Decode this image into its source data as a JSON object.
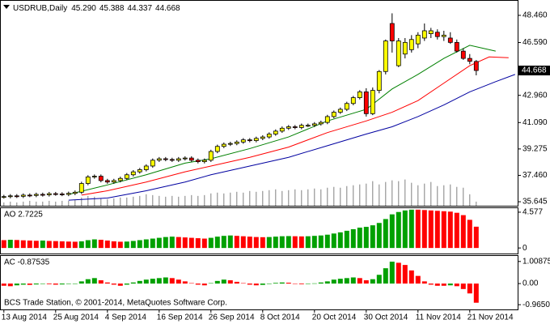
{
  "watermark": "BCS Trade Station, © 2001-2014, MetaQuotes Software Corp.",
  "chart_data": [
    {
      "type": "candlestick",
      "title": "USDRUB,Daily",
      "ohlc_labels": [
        "45.290",
        "45.388",
        "44.337",
        "44.668"
      ],
      "current_price_label": "44.668",
      "xlim": [
        -0.6,
        79.4
      ],
      "ylim": [
        35.37,
        49.46
      ],
      "yticks": [
        {
          "value": 48.46,
          "label": "48.460"
        },
        {
          "value": 46.59,
          "label": "46.590"
        },
        {
          "value": 42.96,
          "label": "42.960"
        },
        {
          "value": 41.09,
          "label": "41.090"
        },
        39.275,
        {
          "value": 37.46,
          "label": "37.460"
        },
        35.645
      ],
      "up_color": "#ffff00",
      "down_color": "#ff0000",
      "open": [
        35.98,
        36.0,
        36.05,
        36.02,
        36.1,
        36.08,
        36.15,
        36.12,
        36.2,
        36.18,
        36.15,
        36.22,
        36.3,
        36.9,
        37.35,
        37.4,
        37.1,
        37.0,
        37.1,
        37.25,
        37.5,
        37.7,
        37.85,
        38.1,
        38.5,
        38.6,
        38.55,
        38.5,
        38.6,
        38.65,
        38.5,
        38.4,
        38.5,
        39.1,
        39.45,
        39.6,
        39.65,
        39.75,
        39.9,
        39.85,
        40.0,
        40.1,
        40.3,
        40.5,
        40.7,
        40.8,
        40.75,
        40.9,
        40.9,
        41.0,
        41.1,
        41.5,
        41.8,
        42.0,
        42.4,
        42.8,
        43.2,
        41.7,
        43.3,
        44.6,
        47.9,
        45.0,
        45.8,
        46.1,
        46.5,
        46.9,
        47.2,
        47.3,
        47.0,
        46.9,
        46.6,
        46.0,
        45.5,
        45.29
      ],
      "high": [
        36.12,
        36.17,
        36.17,
        36.22,
        36.22,
        36.27,
        36.27,
        36.32,
        36.32,
        36.3,
        36.34,
        36.42,
        37.02,
        37.47,
        37.52,
        37.52,
        37.22,
        37.22,
        37.37,
        37.62,
        37.82,
        37.97,
        38.22,
        38.62,
        38.72,
        38.72,
        38.67,
        38.72,
        38.77,
        38.77,
        38.62,
        38.62,
        39.22,
        39.57,
        39.72,
        39.77,
        39.87,
        40.02,
        40.02,
        40.12,
        40.22,
        40.42,
        40.62,
        40.82,
        40.92,
        40.92,
        41.02,
        41.02,
        41.12,
        41.22,
        41.62,
        41.92,
        42.12,
        42.52,
        42.92,
        43.32,
        43.45,
        43.5,
        44.7,
        46.8,
        48.6,
        46.9,
        46.9,
        47.1,
        47.3,
        47.9,
        47.6,
        47.5,
        47.4,
        47.3,
        46.8,
        46.2,
        45.8,
        45.388
      ],
      "low": [
        35.86,
        35.88,
        35.9,
        35.9,
        35.96,
        35.96,
        36.0,
        36.0,
        36.06,
        36.03,
        36.03,
        36.1,
        36.18,
        36.78,
        37.23,
        36.98,
        36.88,
        36.88,
        36.98,
        37.13,
        37.38,
        37.58,
        37.73,
        37.98,
        38.38,
        38.43,
        38.38,
        38.38,
        38.48,
        38.38,
        38.28,
        38.28,
        38.38,
        38.98,
        39.33,
        39.48,
        39.53,
        39.63,
        39.73,
        39.73,
        39.88,
        39.98,
        40.18,
        40.38,
        40.58,
        40.63,
        40.63,
        40.78,
        40.78,
        40.88,
        40.98,
        41.38,
        41.68,
        41.88,
        42.28,
        42.68,
        41.5,
        41.6,
        43.1,
        44.4,
        45.9,
        44.9,
        45.5,
        45.9,
        46.2,
        46.7,
        46.9,
        46.8,
        46.7,
        46.5,
        45.9,
        45.4,
        45.1,
        44.337
      ],
      "close": [
        36.0,
        36.05,
        36.02,
        36.1,
        36.08,
        36.15,
        36.12,
        36.2,
        36.18,
        36.15,
        36.22,
        36.3,
        36.9,
        37.35,
        37.4,
        37.1,
        37.0,
        37.1,
        37.25,
        37.5,
        37.7,
        37.85,
        38.1,
        38.5,
        38.6,
        38.55,
        38.5,
        38.6,
        38.65,
        38.5,
        38.4,
        38.5,
        39.1,
        39.45,
        39.6,
        39.65,
        39.75,
        39.9,
        39.85,
        40.0,
        40.1,
        40.3,
        40.5,
        40.7,
        40.8,
        40.75,
        40.9,
        40.9,
        41.0,
        41.1,
        41.5,
        41.8,
        42.0,
        42.4,
        42.8,
        43.2,
        41.7,
        43.3,
        44.6,
        46.7,
        46.7,
        46.7,
        46.6,
        46.8,
        47.1,
        47.4,
        47.4,
        47.0,
        47.1,
        46.6,
        46.0,
        45.5,
        45.3,
        44.668
      ],
      "series": [
        {
          "color": "#008000",
          "x": [
            10,
            16,
            22,
            28,
            32,
            38,
            44,
            50,
            56,
            60,
            64,
            68,
            72,
            76
          ],
          "values": [
            36.15,
            36.8,
            37.5,
            38.3,
            38.6,
            39.3,
            40.1,
            41.2,
            42.0,
            43.4,
            44.4,
            45.5,
            46.4,
            46.0
          ]
        },
        {
          "color": "#ff0000",
          "x": [
            12,
            16,
            22,
            28,
            32,
            38,
            44,
            50,
            56,
            60,
            64,
            68,
            72,
            75,
            78
          ],
          "values": [
            36.1,
            36.4,
            37.0,
            37.7,
            38.1,
            38.7,
            39.4,
            40.4,
            41.2,
            41.8,
            42.6,
            43.8,
            45.0,
            45.6,
            45.55
          ]
        },
        {
          "color": "#0000a0",
          "x": [
            10,
            16,
            22,
            28,
            32,
            38,
            44,
            50,
            56,
            60,
            64,
            68,
            72,
            76,
            79
          ],
          "values": [
            35.75,
            35.9,
            36.4,
            37.0,
            37.5,
            38.1,
            38.7,
            39.5,
            40.3,
            40.8,
            41.5,
            42.3,
            43.2,
            43.9,
            44.4
          ]
        }
      ],
      "volume": {
        "color": "#808080",
        "ylim": [
          0,
          250
        ],
        "values": [
          4,
          5,
          4,
          5,
          6,
          5,
          5,
          6,
          5,
          6,
          6,
          7,
          10,
          12,
          11,
          9,
          8,
          9,
          10,
          10,
          11,
          12,
          14,
          13,
          12,
          11,
          12,
          11,
          12,
          13,
          12,
          13,
          15,
          16,
          15,
          16,
          17,
          16,
          18,
          17,
          18,
          19,
          20,
          18,
          19,
          20,
          19,
          20,
          21,
          20,
          22,
          23,
          22,
          24,
          25,
          26,
          27,
          30,
          26,
          29,
          31,
          30,
          32,
          28,
          25,
          27,
          29,
          24,
          25,
          26,
          23,
          22,
          14,
          5
        ]
      }
    },
    {
      "type": "bar",
      "title": "AO 2.7225",
      "xlim": [
        -0.6,
        79.4
      ],
      "ylim": [
        -0.71,
        5.09
      ],
      "yticks": [
        4.577,
        0
      ],
      "up_color": "#00a000",
      "down_color": "#ff0000",
      "values": [
        1.0,
        1.05,
        1.02,
        0.98,
        0.95,
        0.92,
        0.95,
        0.9,
        0.88,
        0.85,
        0.82,
        0.8,
        0.85,
        1.0,
        1.1,
        1.05,
        0.95,
        0.85,
        0.8,
        0.82,
        0.9,
        1.0,
        1.1,
        1.2,
        1.3,
        1.4,
        1.45,
        1.4,
        1.35,
        1.3,
        1.25,
        1.2,
        1.3,
        1.45,
        1.55,
        1.6,
        1.55,
        1.5,
        1.45,
        1.4,
        1.38,
        1.4,
        1.45,
        1.5,
        1.52,
        1.5,
        1.48,
        1.5,
        1.55,
        1.6,
        1.7,
        1.85,
        2.0,
        2.2,
        2.4,
        2.6,
        2.7,
        2.9,
        3.2,
        3.7,
        4.3,
        4.6,
        4.8,
        4.9,
        4.9,
        4.85,
        4.8,
        4.75,
        4.7,
        4.65,
        4.5,
        4.2,
        3.6,
        2.7225
      ]
    },
    {
      "type": "bar",
      "title": "AC -0.87535",
      "xlim": [
        -0.6,
        79.4
      ],
      "ylim": [
        -1.181,
        1.261
      ],
      "yticks": [
        1.00875,
        {
          "value": 0,
          "label": "0.00"
        },
        -0.96507
      ],
      "up_color": "#00a000",
      "down_color": "#ff0000",
      "values": [
        -0.1,
        -0.12,
        -0.08,
        -0.05,
        -0.06,
        -0.04,
        -0.02,
        -0.03,
        -0.05,
        -0.04,
        -0.02,
        0.0,
        0.1,
        0.2,
        0.25,
        0.15,
        0.05,
        -0.05,
        -0.1,
        -0.05,
        0.05,
        0.12,
        0.18,
        0.22,
        0.25,
        0.28,
        0.25,
        0.18,
        0.1,
        0.02,
        -0.05,
        -0.08,
        0.02,
        0.12,
        0.18,
        0.15,
        0.08,
        0.02,
        -0.05,
        -0.08,
        -0.06,
        -0.02,
        0.03,
        0.05,
        0.04,
        0.0,
        -0.03,
        -0.02,
        0.01,
        0.05,
        0.1,
        0.18,
        0.22,
        0.25,
        0.28,
        0.25,
        0.15,
        0.2,
        0.4,
        0.7,
        1.0,
        0.95,
        0.85,
        0.6,
        0.35,
        0.1,
        -0.05,
        -0.1,
        -0.1,
        -0.08,
        -0.12,
        -0.25,
        -0.45,
        -0.87535
      ],
      "xticks": [
        {
          "value": 0,
          "label": "13 Aug 2014"
        },
        {
          "value": 8,
          "label": "25 Aug 2014"
        },
        {
          "value": 16,
          "label": "4 Sep 2014"
        },
        {
          "value": 24,
          "label": "16 Sep 2014"
        },
        {
          "value": 32,
          "label": "26 Sep 2014"
        },
        {
          "value": 40,
          "label": "8 Oct 2014"
        },
        {
          "value": 48,
          "label": "20 Oct 2014"
        },
        {
          "value": 56,
          "label": "30 Oct 2014"
        },
        {
          "value": 64,
          "label": "11 Nov 2014"
        },
        {
          "value": 72,
          "label": "21 Nov 2014"
        }
      ]
    }
  ]
}
